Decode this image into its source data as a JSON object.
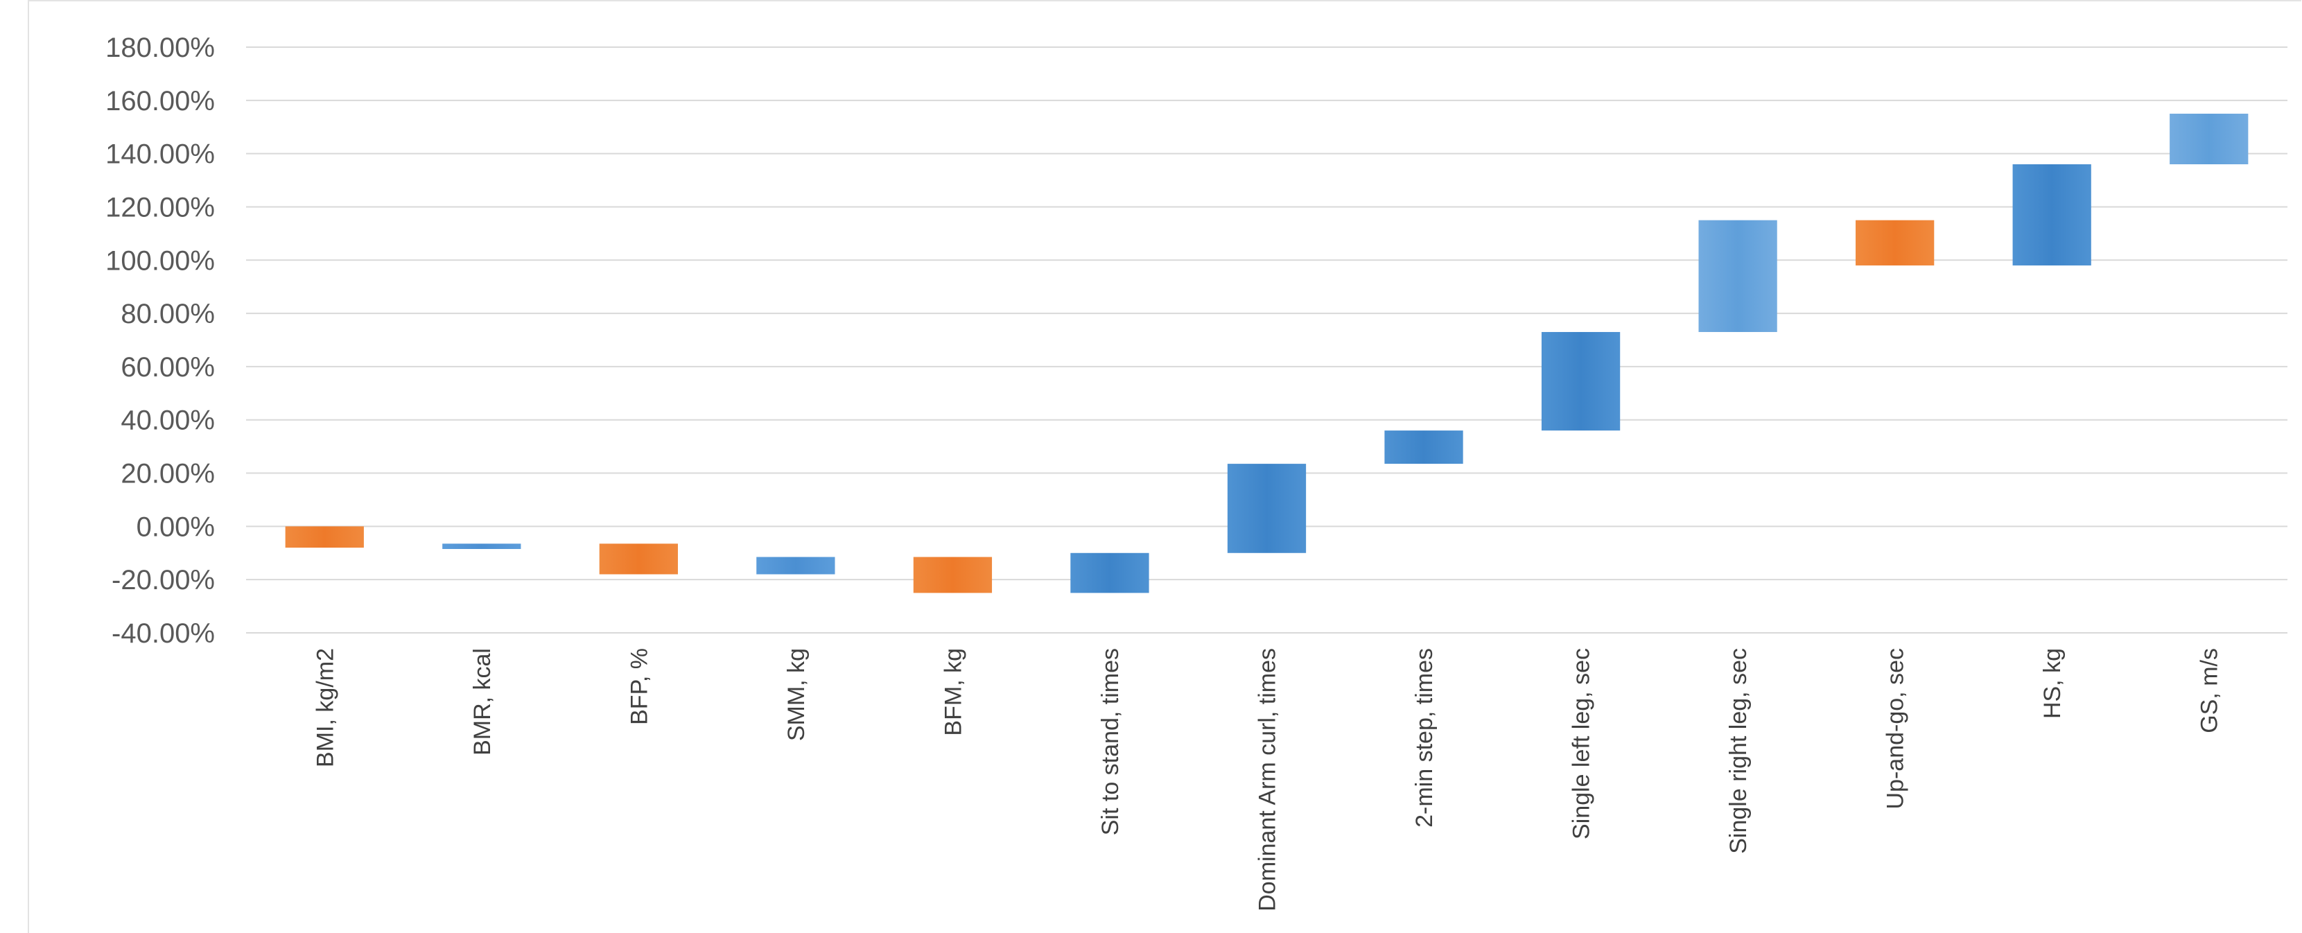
{
  "chart_data": {
    "type": "bar",
    "subtype": "waterfall",
    "title": "",
    "xlabel": "",
    "ylabel": "",
    "ylim": [
      -40,
      180
    ],
    "y_tick_format": "percent_2dp",
    "y_ticks": [
      "180.00%",
      "160.00%",
      "140.00%",
      "120.00%",
      "100.00%",
      "80.00%",
      "60.00%",
      "40.00%",
      "20.00%",
      "0.00%",
      "-20.00%",
      "-40.00%"
    ],
    "grid": true,
    "legend": "none",
    "categories": [
      "BMI, kg/m2",
      "BMR, kcal",
      "BFP, %",
      "SMM, kg",
      "BFM, kg",
      "Sit to stand, times",
      "Dominant Arm curl, times",
      "2-min step, times",
      "Single left leg, sec",
      "Single right leg, sec",
      "Up-and-go, sec",
      "HS, kg",
      "GS, m/s"
    ],
    "bars": [
      {
        "start": 0,
        "end": -8,
        "color": "orange"
      },
      {
        "start": -6.5,
        "end": -8.5,
        "color": "blue"
      },
      {
        "start": -6.5,
        "end": -18,
        "color": "orange"
      },
      {
        "start": -11.5,
        "end": -18,
        "color": "blue"
      },
      {
        "start": -11.5,
        "end": -25,
        "color": "orange"
      },
      {
        "start": -10,
        "end": -25,
        "color": "darkblue"
      },
      {
        "start": -10,
        "end": 23.5,
        "color": "darkblue"
      },
      {
        "start": 23.5,
        "end": 36,
        "color": "darkblue"
      },
      {
        "start": 36,
        "end": 73,
        "color": "darkblue"
      },
      {
        "start": 73,
        "end": 115,
        "color": "lightblue"
      },
      {
        "start": 115,
        "end": 98,
        "color": "orange"
      },
      {
        "start": 98,
        "end": 136,
        "color": "darkblue"
      },
      {
        "start": 136,
        "end": 155,
        "color": "lightblue"
      }
    ],
    "colors": {
      "orange": "#ed7d31",
      "blue": "#5b9bd5",
      "darkblue": "#4a8fd0",
      "lightblue": "#6aa6dc",
      "grid": "#d9d9d9",
      "axis_text": "#595959"
    }
  }
}
